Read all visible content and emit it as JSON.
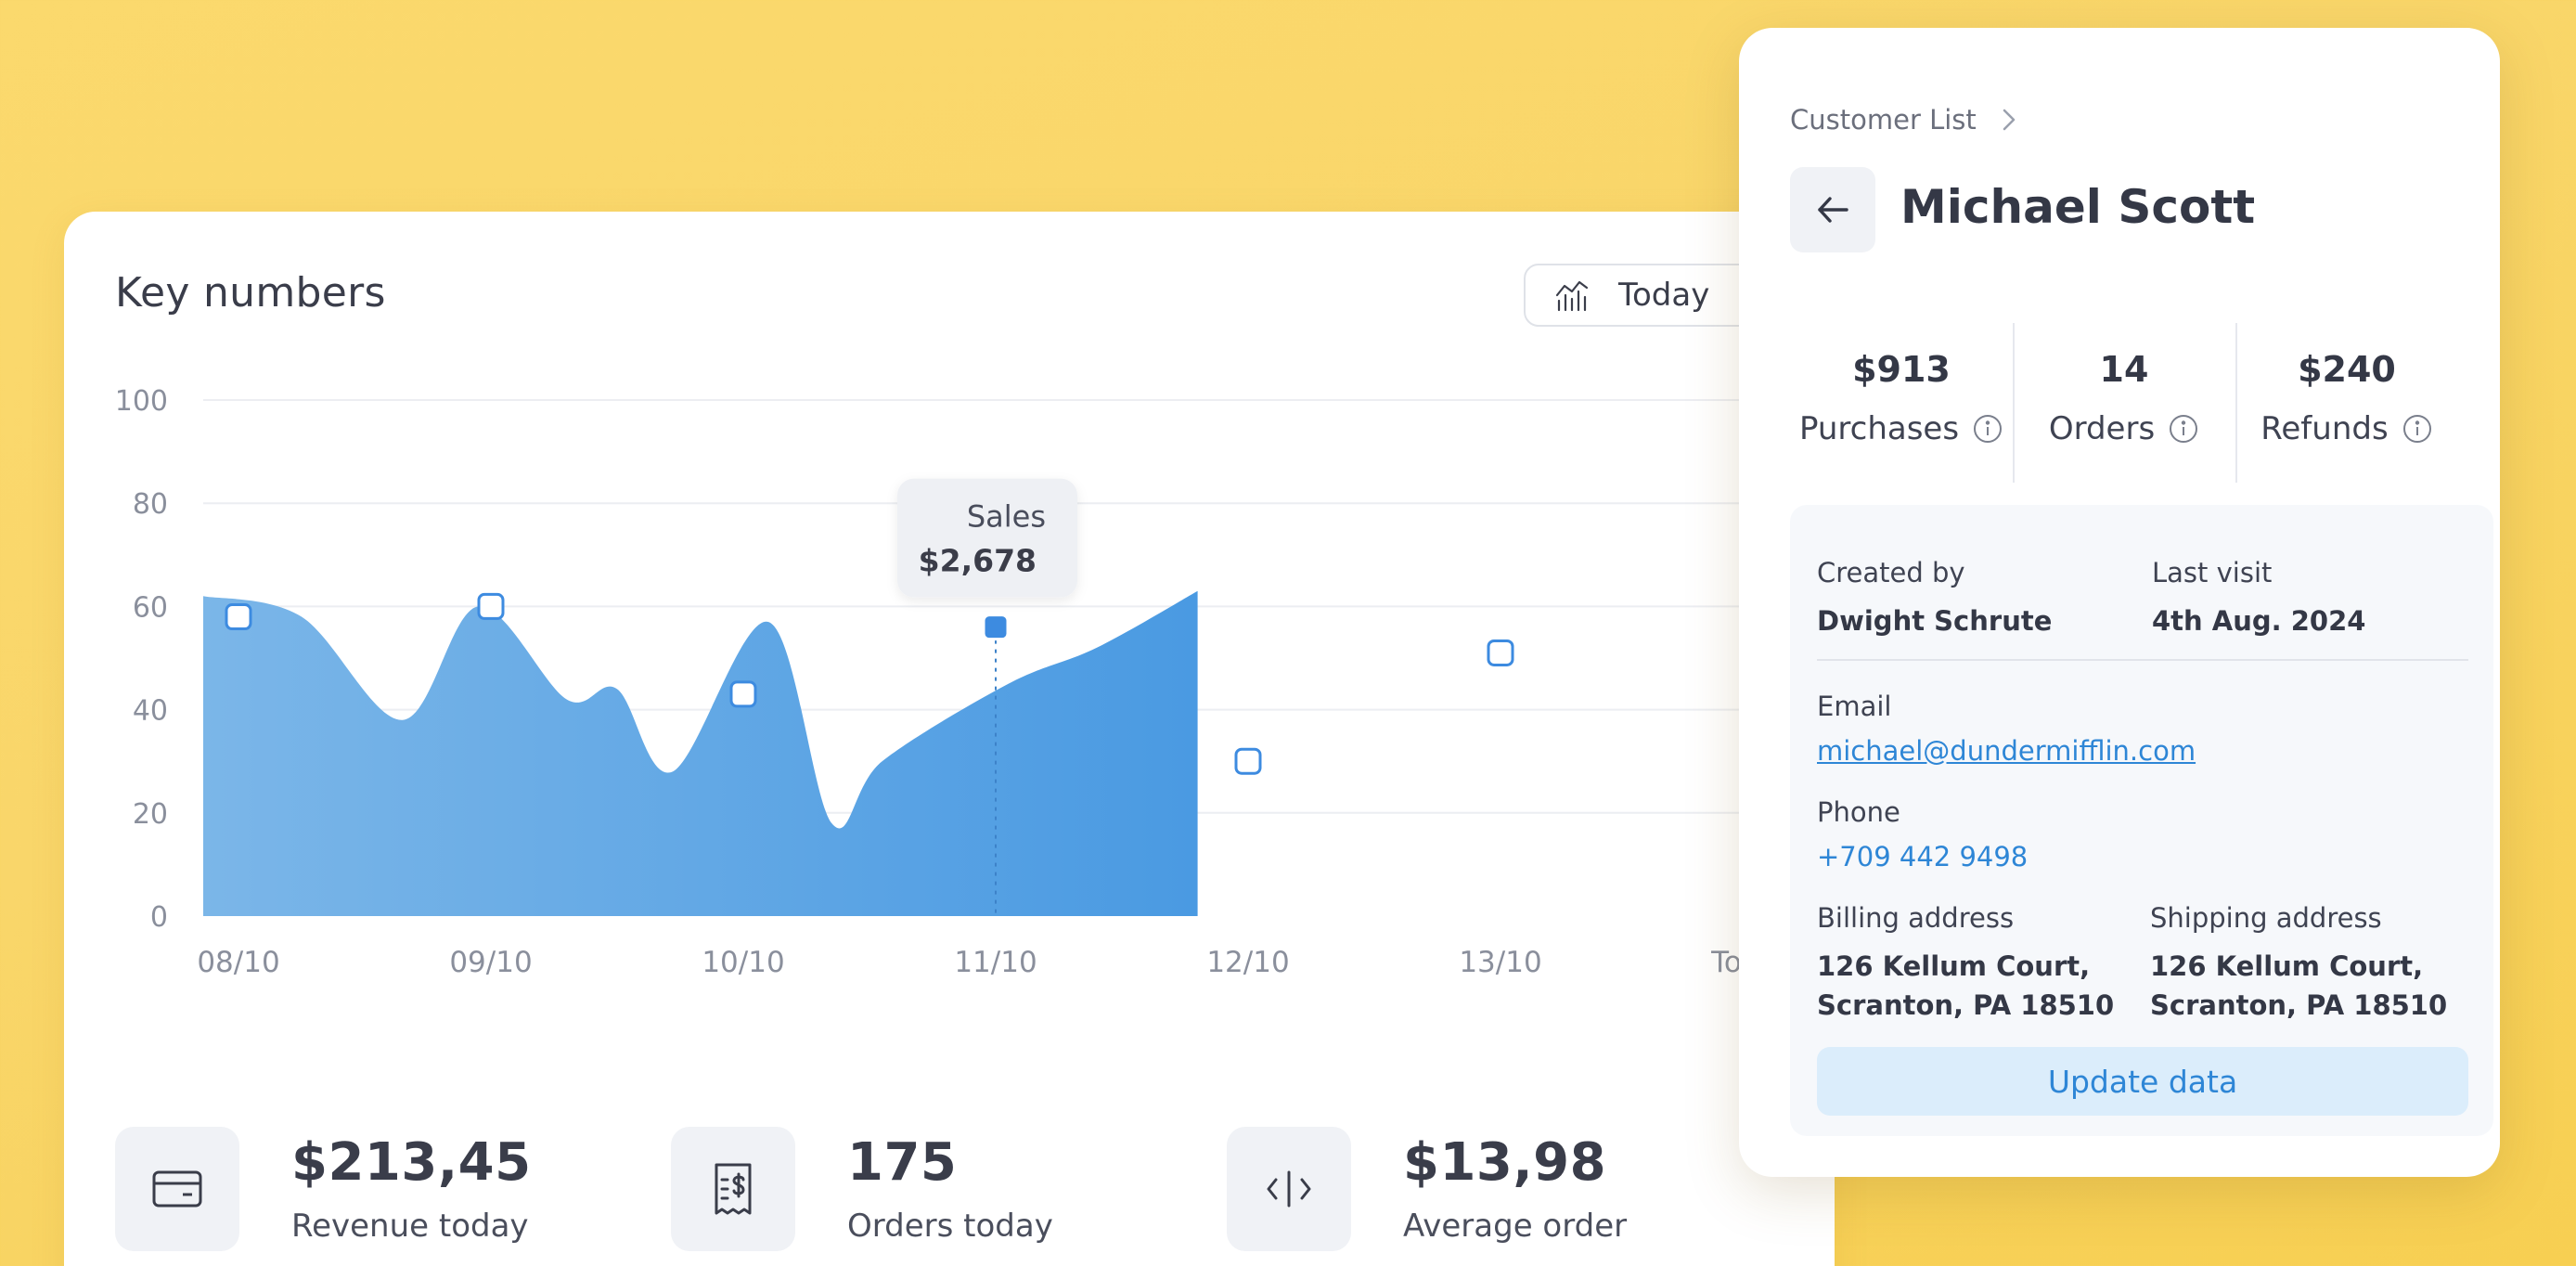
{
  "dashboard": {
    "title": "Key numbers",
    "period": "Today",
    "tooltip": {
      "label": "Sales",
      "value": "$2,678"
    },
    "stats": [
      {
        "value": "$213,45",
        "label": "Revenue today",
        "icon": "credit-card-icon"
      },
      {
        "value": "175",
        "label": "Orders today",
        "icon": "receipt-dollar-icon"
      },
      {
        "value": "$13,98",
        "label": "Average order",
        "icon": "code-icon"
      }
    ]
  },
  "chart_data": {
    "type": "area",
    "ylim": [
      0,
      100
    ],
    "yticks": [
      "0",
      "20",
      "40",
      "60",
      "80",
      "100"
    ],
    "x_labels": [
      "08/10",
      "09/10",
      "10/10",
      "11/10",
      "12/10",
      "13/10",
      "Today"
    ],
    "curve": [
      [
        0,
        62
      ],
      [
        0.25,
        58
      ],
      [
        0.65,
        38
      ],
      [
        0.95,
        60
      ],
      [
        1.3,
        42
      ],
      [
        1.5,
        44
      ],
      [
        1.72,
        28
      ],
      [
        2.1,
        57
      ],
      [
        2.35,
        18
      ],
      [
        2.55,
        30
      ],
      [
        3.05,
        45
      ],
      [
        3.4,
        52
      ],
      [
        3.8,
        63
      ]
    ],
    "markers": [
      [
        0,
        58
      ],
      [
        1,
        60
      ],
      [
        2,
        43
      ],
      [
        3,
        56
      ],
      [
        4,
        30
      ],
      [
        5,
        51
      ]
    ],
    "colors": {
      "fill_start": "#7bb6e8",
      "fill_end": "#4a9ae2",
      "line": "#4a9ae2"
    }
  },
  "customer": {
    "breadcrumb": "Customer List",
    "name": "Michael Scott",
    "metrics": [
      {
        "value": "$913",
        "label": "Purchases"
      },
      {
        "value": "14",
        "label": "Orders"
      },
      {
        "value": "$240",
        "label": "Refunds"
      }
    ],
    "created_by_label": "Created by",
    "created_by": "Dwight Schrute",
    "last_visit_label": "Last visit",
    "last_visit": "4th Aug. 2024",
    "email_label": "Email",
    "email": "michael@dundermifflin.com",
    "phone_label": "Phone",
    "phone": "+709 442 9498",
    "billing_label": "Billing address",
    "billing_line1": "126 Kellum Court,",
    "billing_line2": "Scranton, PA 18510",
    "shipping_label": "Shipping address",
    "shipping_line1": "126 Kellum Court,",
    "shipping_line2": "Scranton, PA 18510",
    "update_label": "Update data"
  }
}
